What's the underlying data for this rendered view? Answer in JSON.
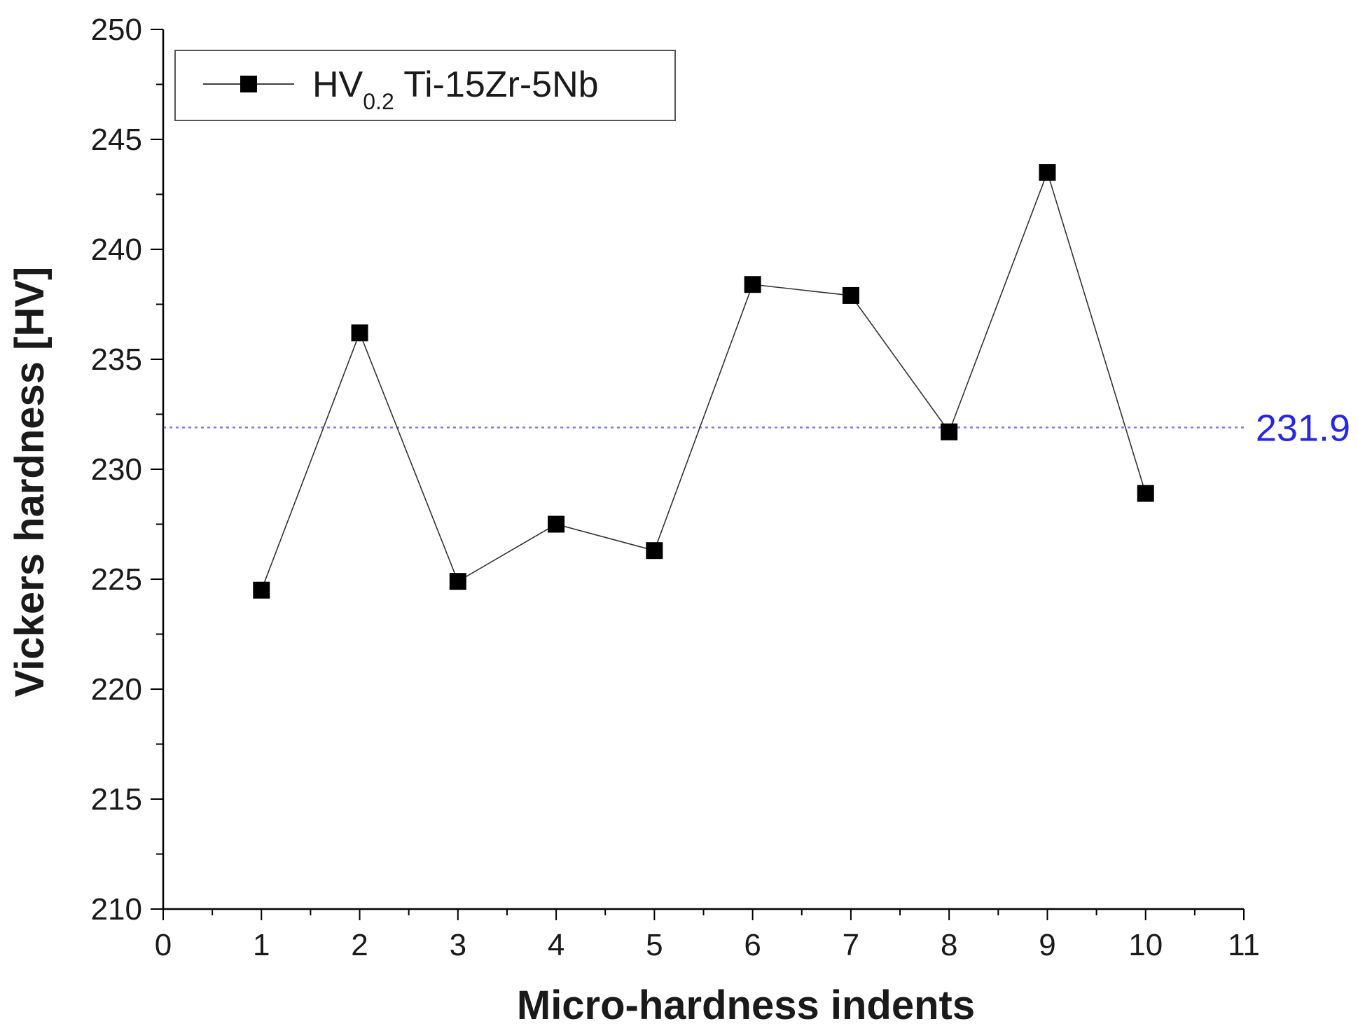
{
  "chart_data": {
    "type": "line",
    "title": "",
    "xlabel": "Micro-hardness indents",
    "ylabel": "Vickers hardness [HV]",
    "xlim": [
      0,
      11
    ],
    "ylim": [
      210,
      250
    ],
    "x_ticks": [
      0,
      1,
      2,
      3,
      4,
      5,
      6,
      7,
      8,
      9,
      10,
      11
    ],
    "y_ticks": [
      210,
      215,
      220,
      225,
      230,
      235,
      240,
      245,
      250
    ],
    "x_tick_labels": [
      "0",
      "1",
      "2",
      "3",
      "4",
      "5",
      "6",
      "7",
      "8",
      "9",
      "10",
      "11"
    ],
    "y_tick_labels": [
      "210",
      "215",
      "220",
      "225",
      "230",
      "235",
      "240",
      "245",
      "250"
    ],
    "grid": false,
    "legend": {
      "placement": "top-left",
      "label_main": "HV",
      "label_sub": "0.2",
      "label_rest": " Ti-15Zr-5Nb"
    },
    "series": [
      {
        "name": "HV0.2 Ti-15Zr-5Nb",
        "marker": "square",
        "color": "#000000",
        "x": [
          1,
          2,
          3,
          4,
          5,
          6,
          7,
          8,
          9,
          10
        ],
        "values": [
          224.5,
          236.2,
          224.9,
          227.5,
          226.3,
          238.4,
          237.9,
          231.7,
          243.5,
          228.9
        ]
      }
    ],
    "reference_line": {
      "value": 231.9,
      "label": "231.9",
      "color": "#2626e6",
      "style": "dotted"
    }
  }
}
